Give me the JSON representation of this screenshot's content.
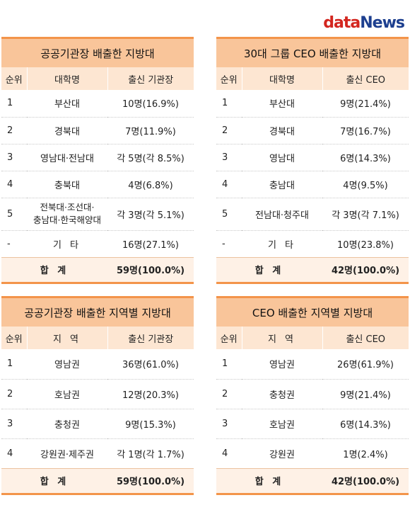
{
  "logo": {
    "part1": "data",
    "part2": "News"
  },
  "t1": {
    "title": "공공기관장 배출한 지방대",
    "headers": [
      "순위",
      "대학명",
      "출신 기관장"
    ],
    "rows": [
      [
        "1",
        "부산대",
        "10명(16.9%)"
      ],
      [
        "2",
        "경북대",
        "7명(11.9%)"
      ],
      [
        "3",
        "영남대·전남대",
        "각 5명(각 8.5%)"
      ],
      [
        "4",
        "충북대",
        "4명(6.8%)"
      ],
      [
        "5",
        "전북대·조선대·",
        "각 3명(각 5.1%)"
      ],
      [
        "-",
        "기 타",
        "16명(27.1%)"
      ]
    ],
    "row5_line2": "충남대·한국해양대",
    "total_label": "합 계",
    "total_value": "59명(100.0%)"
  },
  "t2": {
    "title": "30대 그룹 CEO 배출한 지방대",
    "headers": [
      "순위",
      "대학명",
      "출신 CEO"
    ],
    "rows": [
      [
        "1",
        "부산대",
        "9명(21.4%)"
      ],
      [
        "2",
        "경북대",
        "7명(16.7%)"
      ],
      [
        "3",
        "영남대",
        "6명(14.3%)"
      ],
      [
        "4",
        "충남대",
        "4명(9.5%)"
      ],
      [
        "5",
        "전남대·청주대",
        "각 3명(각 7.1%)"
      ],
      [
        "-",
        "기 타",
        "10명(23.8%)"
      ]
    ],
    "total_label": "합 계",
    "total_value": "42명(100.0%)"
  },
  "t3": {
    "title": "공공기관장 배출한 지역별 지방대",
    "headers": [
      "순위",
      "지 역",
      "출신 기관장"
    ],
    "rows": [
      [
        "1",
        "영남권",
        "36명(61.0%)"
      ],
      [
        "2",
        "호남권",
        "12명(20.3%)"
      ],
      [
        "3",
        "충청권",
        "9명(15.3%)"
      ],
      [
        "4",
        "강원권·제주권",
        "각 1명(각 1.7%)"
      ]
    ],
    "total_label": "합 계",
    "total_value": "59명(100.0%)"
  },
  "t4": {
    "title": "CEO 배출한 지역별 지방대",
    "headers": [
      "순위",
      "지 역",
      "출신 CEO"
    ],
    "rows": [
      [
        "1",
        "영남권",
        "26명(61.9%)"
      ],
      [
        "2",
        "충청권",
        "9명(21.4%)"
      ],
      [
        "3",
        "호남권",
        "6명(14.3%)"
      ],
      [
        "4",
        "강원권",
        "1명(2.4%)"
      ]
    ],
    "total_label": "합 계",
    "total_value": "42명(100.0%)"
  }
}
